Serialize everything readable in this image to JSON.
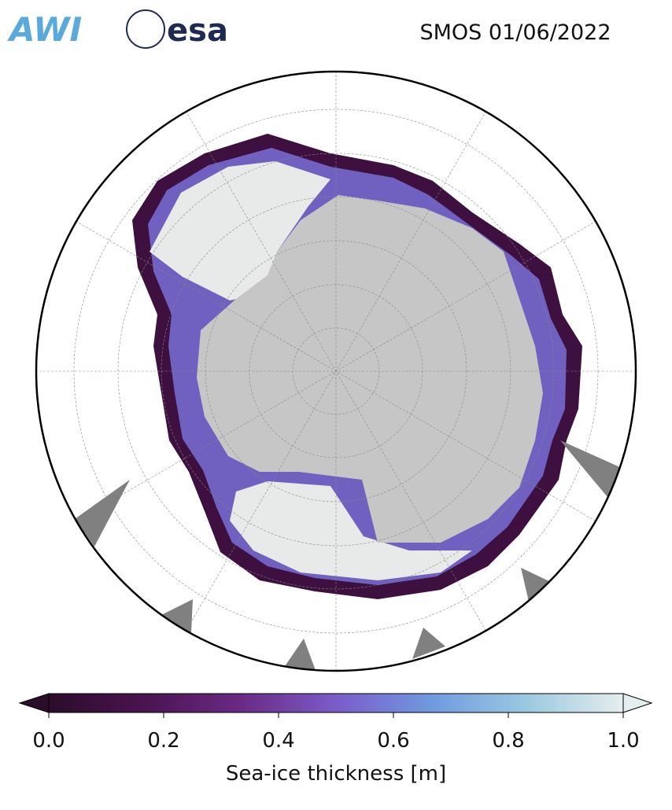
{
  "header": {
    "logos": [
      "AWI",
      "esa"
    ],
    "title": "SMOS 01/06/2022"
  },
  "colorbar": {
    "label": "Sea-ice thickness [m]",
    "range": [
      0,
      1
    ],
    "ticks": [
      {
        "value": 0,
        "label": "0.0"
      },
      {
        "value": 0.2,
        "label": "0.2"
      },
      {
        "value": 0.4,
        "label": "0.4"
      },
      {
        "value": 0.6,
        "label": "0.6"
      },
      {
        "value": 0.8,
        "label": "0.8"
      },
      {
        "value": 1,
        "label": "1.0"
      }
    ],
    "colors": [
      "#2b0c2b",
      "#4a1450",
      "#6a2a84",
      "#7b5cc8",
      "#6f9ae0",
      "#9cc9e0",
      "#e4eeee"
    ]
  }
}
